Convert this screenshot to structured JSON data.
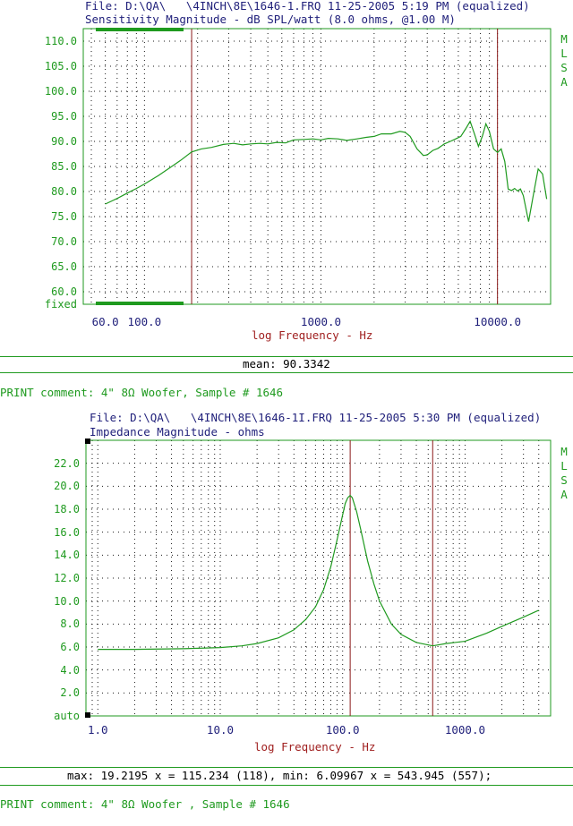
{
  "chart_data": [
    {
      "type": "line",
      "file_line": "File: D:\\QA\\   \\4INCH\\8E\\1646-1.FRQ 11-25-2005 5:19 PM (equalized)",
      "title": "Sensitivity Magnitude - dB SPL/watt (8.0 ohms, @1.00 M)",
      "xlabel": "log Frequency - Hz",
      "ylabel": "",
      "xscale": "log",
      "xlim": [
        45,
        20000
      ],
      "ylim": [
        57.5,
        112.5
      ],
      "yticks": [
        "110.0",
        "105.0",
        "100.0",
        "95.0",
        "90.0",
        "85.0",
        "80.0",
        "75.0",
        "70.0",
        "65.0",
        "60.0",
        "fixed"
      ],
      "xticks": [
        "60.0",
        "100.0",
        "1000.0",
        "10000.0"
      ],
      "side_label": [
        "M",
        "L",
        "S",
        "A"
      ],
      "cursors": [
        185,
        10000
      ],
      "series": [
        {
          "x": [
            60,
            70,
            80,
            90,
            100,
            120,
            140,
            160,
            185,
            210,
            240,
            280,
            320,
            360,
            400,
            450,
            500,
            560,
            630,
            700,
            800,
            900,
            1000,
            1100,
            1250,
            1400,
            1600,
            1800,
            2000,
            2200,
            2500,
            2800,
            3000,
            3200,
            3500,
            3800,
            4000,
            4300,
            4600,
            5000,
            5400,
            5800,
            6200,
            6600,
            7000,
            7400,
            7800,
            8200,
            8600,
            9000,
            9500,
            10000,
            10500,
            11000,
            11500,
            12000,
            12500,
            13000,
            13500,
            14000,
            15000,
            16000,
            17000,
            18000,
            19000
          ],
          "values": [
            77.5,
            78.6,
            79.7,
            80.6,
            81.5,
            83.2,
            84.8,
            86.2,
            87.9,
            88.5,
            88.8,
            89.4,
            89.6,
            89.3,
            89.5,
            89.6,
            89.5,
            89.8,
            89.7,
            90.3,
            90.4,
            90.5,
            90.3,
            90.6,
            90.5,
            90.2,
            90.5,
            90.8,
            91.0,
            91.5,
            91.5,
            92.0,
            91.8,
            91.0,
            88.5,
            87.2,
            87.3,
            88.2,
            88.6,
            89.5,
            90.0,
            90.5,
            91.0,
            92.5,
            94.0,
            91.5,
            89.0,
            91.0,
            93.5,
            92.0,
            88.5,
            87.8,
            88.5,
            86.0,
            80.5,
            80.2,
            80.6,
            80.1,
            80.5,
            79.2,
            74.0,
            79.5,
            84.5,
            83.5,
            78.5
          ]
        }
      ],
      "footer": "mean: 90.3342"
    },
    {
      "type": "line",
      "file_line": "File: D:\\QA\\   \\4INCH\\8E\\1646-1I.FRQ 11-25-2005 5:30 PM (equalized)",
      "title": "Impedance Magnitude - ohms",
      "xlabel": "log Frequency - Hz",
      "ylabel": "",
      "xscale": "log",
      "xlim": [
        0.8,
        5000
      ],
      "ylim": [
        0,
        24
      ],
      "yticks": [
        "22.0",
        "20.0",
        "18.0",
        "16.0",
        "14.0",
        "12.0",
        "10.0",
        "8.0",
        "6.0",
        "4.0",
        "2.0",
        "auto"
      ],
      "xticks": [
        "1.0",
        "10.0",
        "100.0",
        "1000.0"
      ],
      "side_label": [
        "M",
        "L",
        "S",
        "A"
      ],
      "cursors": [
        115.234,
        543.945
      ],
      "series": [
        {
          "x": [
            1,
            2,
            5,
            10,
            15,
            20,
            30,
            40,
            50,
            60,
            70,
            80,
            90,
            100,
            105,
            110,
            115.234,
            120,
            130,
            140,
            160,
            180,
            200,
            250,
            300,
            400,
            543.945,
            700,
            1000,
            1500,
            2000,
            3000,
            4000
          ],
          "values": [
            5.8,
            5.8,
            5.85,
            5.95,
            6.1,
            6.3,
            6.8,
            7.5,
            8.4,
            9.5,
            11.0,
            13.0,
            15.3,
            17.5,
            18.5,
            19.0,
            19.2,
            19.0,
            17.8,
            16.3,
            13.5,
            11.5,
            10.0,
            8.0,
            7.1,
            6.4,
            6.1,
            6.3,
            6.5,
            7.2,
            7.8,
            8.6,
            9.2
          ]
        }
      ],
      "footer": "max: 19.2195 x = 115.234 (118), min: 6.09967 x = 543.945 (557);"
    }
  ],
  "comments": [
    "PRINT comment: 4\" 8Ω Woofer, Sample # 1646",
    "PRINT comment: 4\" 8Ω Woofer , Sample # 1646"
  ],
  "colors": {
    "curve": "#1f9a1f",
    "frame": "#1f9a1f",
    "grid": "#1a1a1a",
    "cursor": "#8b1a1a",
    "text": "#1f1f7a"
  }
}
